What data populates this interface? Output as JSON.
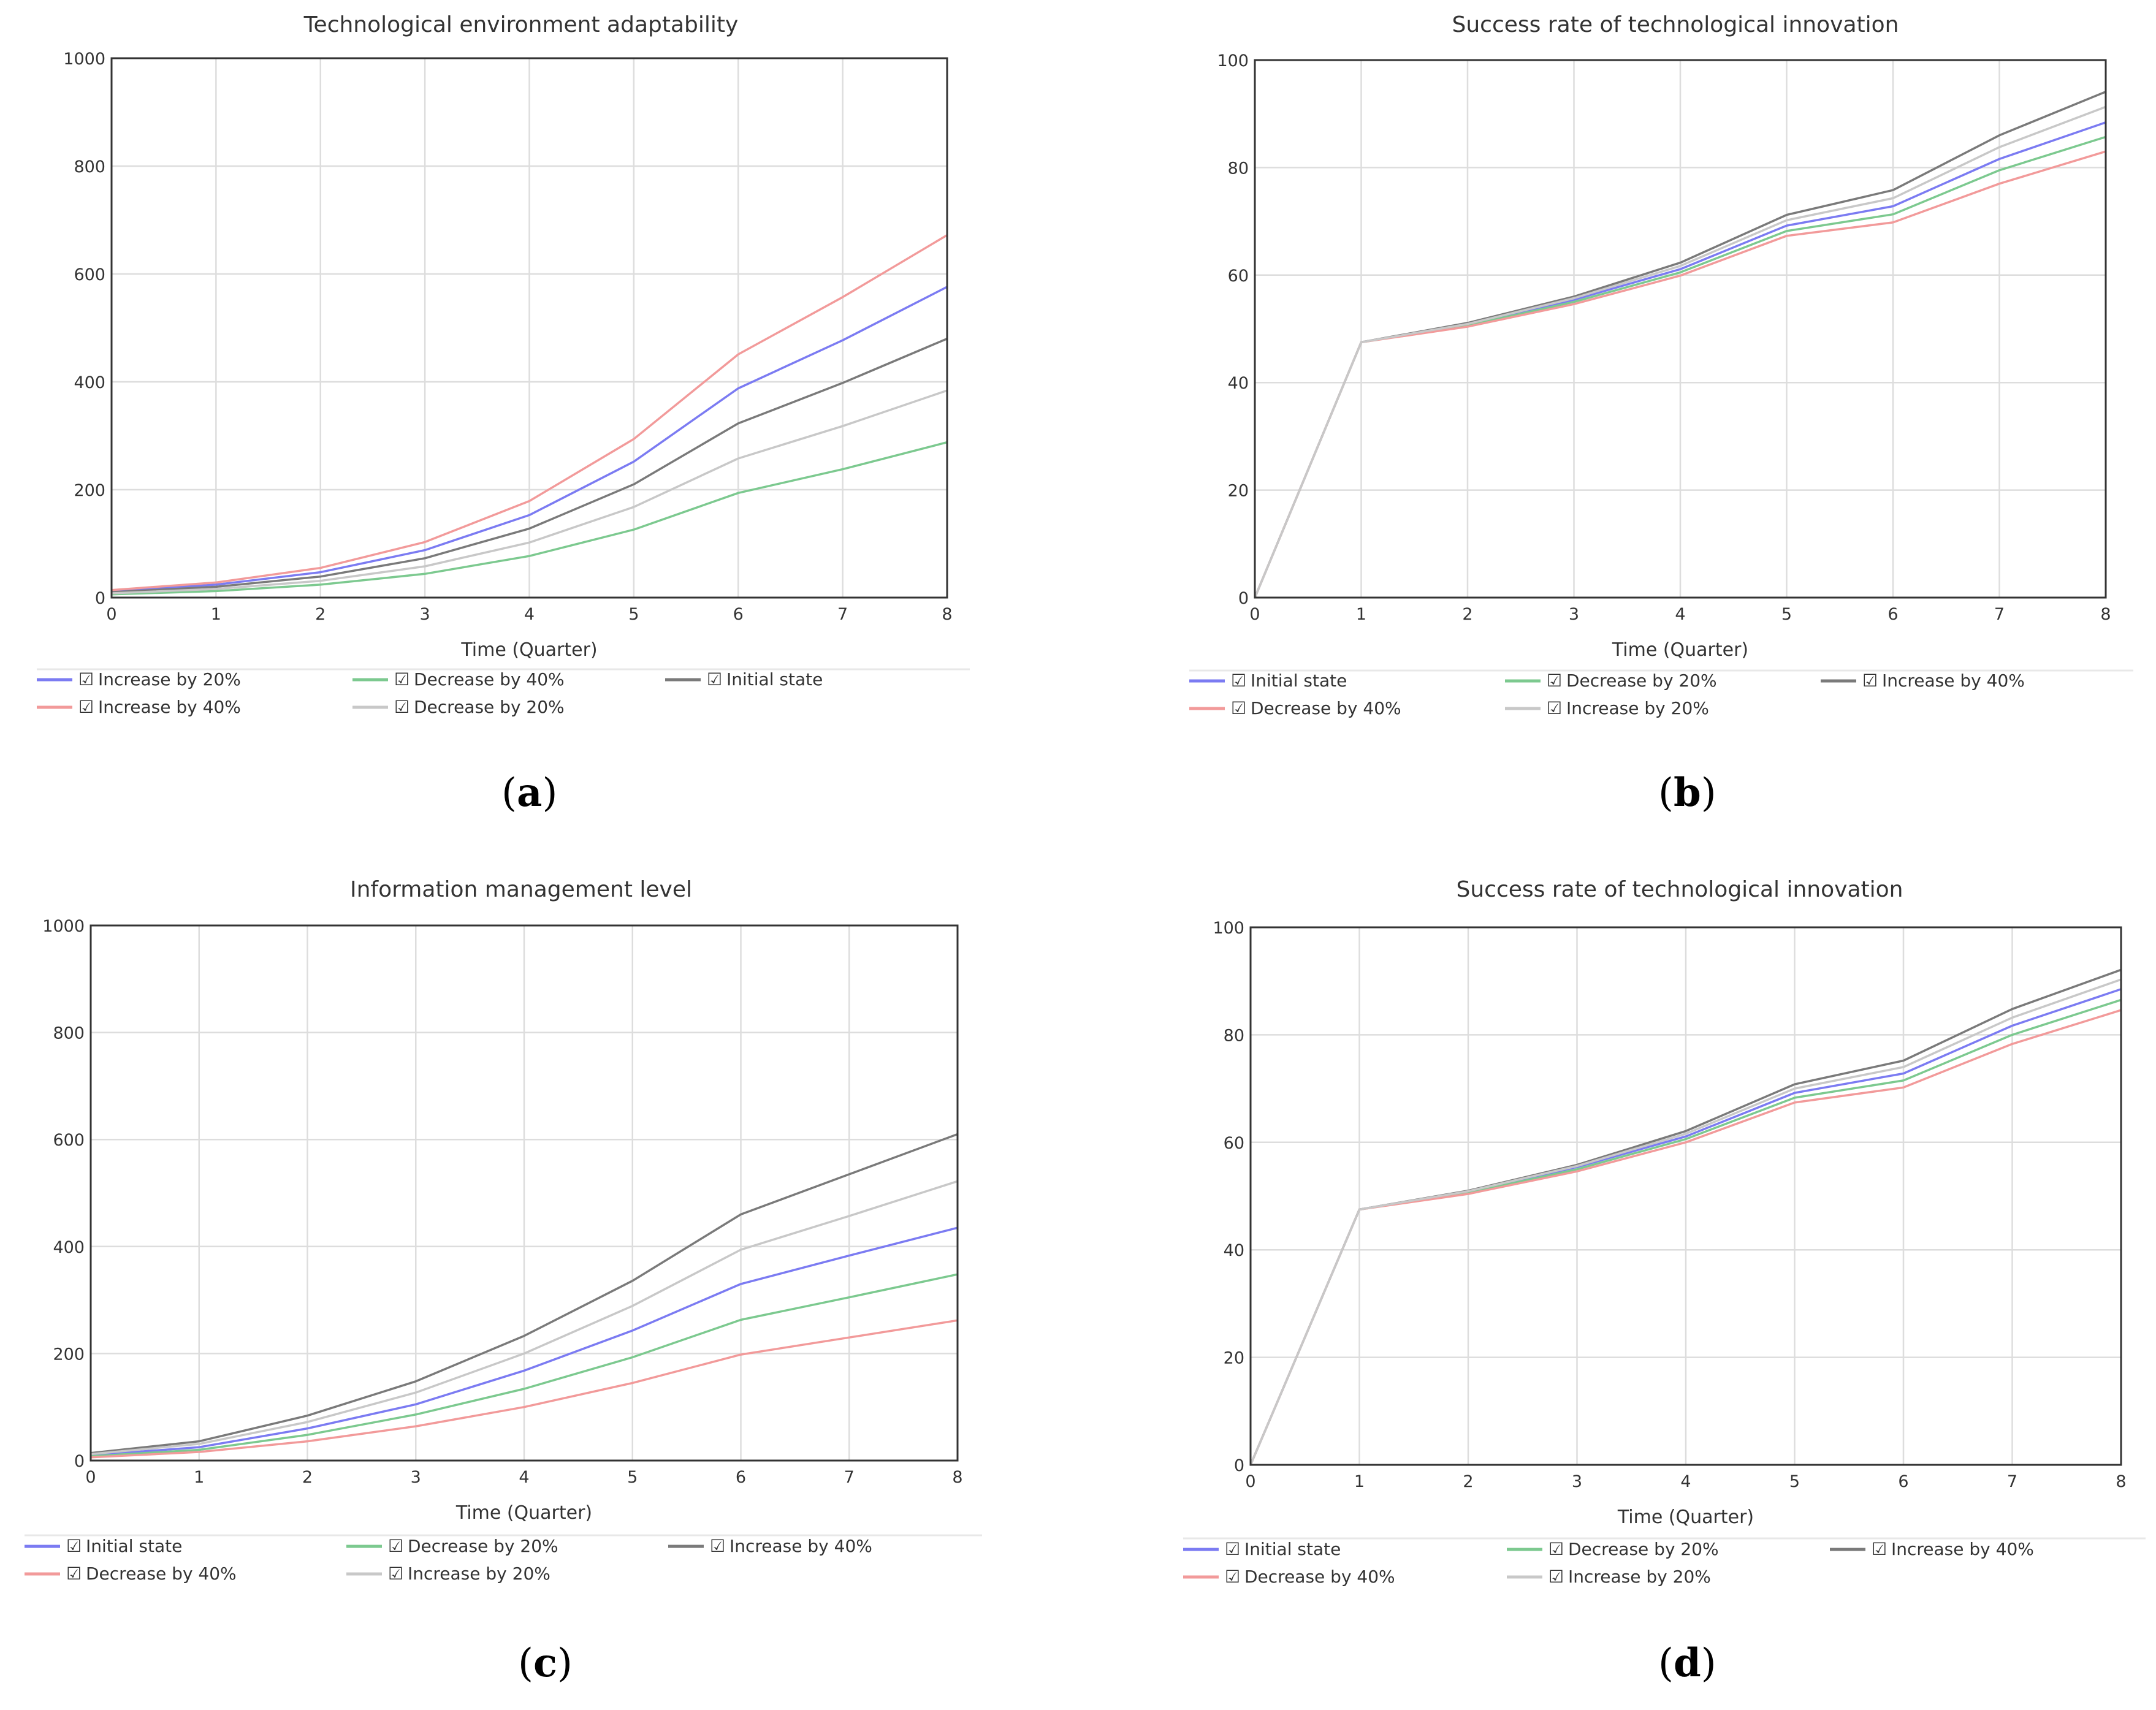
{
  "colors": {
    "blue": "#7b7bf2",
    "green": "#7cc98f",
    "dark": "#7a7a7a",
    "red": "#f29a9a",
    "light": "#c8c8c8",
    "grid": "#dddddd",
    "frame": "#333333"
  },
  "chart_data": [
    {
      "type": "line",
      "panel": "a",
      "title": "Technological environment adaptability",
      "xlabel": "Time (Quarter)",
      "ylabel": "",
      "xlim": [
        0,
        8
      ],
      "ylim": [
        0,
        1000
      ],
      "x_ticks": [
        0,
        1,
        2,
        3,
        4,
        5,
        6,
        7,
        8
      ],
      "y_ticks": [
        0,
        200,
        400,
        600,
        800,
        1000
      ],
      "x": [
        0,
        1,
        2,
        3,
        4,
        5,
        6,
        7,
        8
      ],
      "series": [
        {
          "name": "Increase by 20%",
          "color": "blue",
          "values": [
            12,
            24,
            47,
            88,
            153,
            252,
            388,
            477,
            576
          ]
        },
        {
          "name": "Decrease by 40%",
          "color": "green",
          "values": [
            6,
            12,
            24,
            44,
            77,
            126,
            194,
            238,
            288
          ]
        },
        {
          "name": "Initial state",
          "color": "dark",
          "values": [
            10,
            20,
            39,
            73,
            128,
            210,
            323,
            398,
            480
          ]
        },
        {
          "name": "Increase by 40%",
          "color": "red",
          "values": [
            14,
            28,
            55,
            103,
            179,
            294,
            451,
            557,
            672
          ]
        },
        {
          "name": "Decrease by 20%",
          "color": "light",
          "values": [
            8,
            16,
            31,
            58,
            102,
            168,
            258,
            318,
            384
          ]
        }
      ]
    },
    {
      "type": "line",
      "panel": "b",
      "title": "Success rate of technological innovation",
      "xlabel": "Time (Quarter)",
      "ylabel": "",
      "xlim": [
        0,
        8
      ],
      "ylim": [
        0,
        100
      ],
      "x_ticks": [
        0,
        1,
        2,
        3,
        4,
        5,
        6,
        7,
        8
      ],
      "y_ticks": [
        0,
        20,
        40,
        60,
        80,
        100
      ],
      "x": [
        0,
        1,
        2,
        3,
        4,
        5,
        6,
        7,
        8
      ],
      "series": [
        {
          "name": "Initial state",
          "color": "blue",
          "values": [
            0,
            47.5,
            50.8,
            55.4,
            61.1,
            69.2,
            72.8,
            81.6,
            88.4
          ]
        },
        {
          "name": "Decrease by 20%",
          "color": "green",
          "values": [
            0,
            47.5,
            50.6,
            55.0,
            60.5,
            68.2,
            71.3,
            79.5,
            85.7
          ]
        },
        {
          "name": "Increase by 40%",
          "color": "dark",
          "values": [
            0,
            47.5,
            51.1,
            56.0,
            62.3,
            71.2,
            75.8,
            86.0,
            94.1
          ]
        },
        {
          "name": "Decrease by 40%",
          "color": "red",
          "values": [
            0,
            47.5,
            50.4,
            54.6,
            59.9,
            67.3,
            69.8,
            77.0,
            83.0
          ]
        },
        {
          "name": "Increase by 20%",
          "color": "light",
          "values": [
            0,
            47.5,
            50.9,
            55.7,
            61.7,
            70.2,
            74.3,
            83.8,
            91.3
          ]
        }
      ]
    },
    {
      "type": "line",
      "panel": "c",
      "title": "Information management level",
      "xlabel": "Time (Quarter)",
      "ylabel": "",
      "xlim": [
        0,
        8
      ],
      "ylim": [
        0,
        1000
      ],
      "x_ticks": [
        0,
        1,
        2,
        3,
        4,
        5,
        6,
        7,
        8
      ],
      "y_ticks": [
        0,
        200,
        400,
        600,
        800,
        1000
      ],
      "x": [
        0,
        1,
        2,
        3,
        4,
        5,
        6,
        7,
        8
      ],
      "series": [
        {
          "name": "Initial state",
          "color": "blue",
          "values": [
            10,
            25,
            60,
            105,
            168,
            243,
            330,
            383,
            435
          ]
        },
        {
          "name": "Decrease by 20%",
          "color": "green",
          "values": [
            8,
            20,
            48,
            86,
            134,
            193,
            263,
            305,
            348
          ]
        },
        {
          "name": "Increase by 40%",
          "color": "dark",
          "values": [
            14,
            36,
            84,
            148,
            233,
            336,
            460,
            535,
            610
          ]
        },
        {
          "name": "Decrease by 40%",
          "color": "red",
          "values": [
            6,
            16,
            36,
            64,
            100,
            145,
            198,
            230,
            262
          ]
        },
        {
          "name": "Increase by 20%",
          "color": "light",
          "values": [
            12,
            31,
            72,
            127,
            200,
            289,
            394,
            457,
            522
          ]
        }
      ]
    },
    {
      "type": "line",
      "panel": "d",
      "title": "Success rate of technological innovation",
      "xlabel": "Time (Quarter)",
      "ylabel": "",
      "xlim": [
        0,
        8
      ],
      "ylim": [
        0,
        100
      ],
      "x_ticks": [
        0,
        1,
        2,
        3,
        4,
        5,
        6,
        7,
        8
      ],
      "y_ticks": [
        0,
        20,
        40,
        60,
        80,
        100
      ],
      "x": [
        0,
        1,
        2,
        3,
        4,
        5,
        6,
        7,
        8
      ],
      "series": [
        {
          "name": "Initial state",
          "color": "blue",
          "values": [
            0,
            47.5,
            50.8,
            55.4,
            61.1,
            69.2,
            72.8,
            81.7,
            88.5
          ]
        },
        {
          "name": "Decrease by 20%",
          "color": "green",
          "values": [
            0,
            47.5,
            50.6,
            55.0,
            60.6,
            68.3,
            71.5,
            80.0,
            86.5
          ]
        },
        {
          "name": "Increase by 40%",
          "color": "dark",
          "values": [
            0,
            47.5,
            51.0,
            55.8,
            62.1,
            70.8,
            75.2,
            84.8,
            92.1
          ]
        },
        {
          "name": "Decrease by 40%",
          "color": "red",
          "values": [
            0,
            47.5,
            50.4,
            54.6,
            60.0,
            67.4,
            70.2,
            78.3,
            84.6
          ]
        },
        {
          "name": "Increase by 20%",
          "color": "light",
          "values": [
            0,
            47.5,
            50.9,
            55.6,
            61.6,
            70.0,
            74.0,
            83.2,
            90.3
          ]
        }
      ]
    }
  ],
  "panel_labels": [
    "a",
    "b",
    "c",
    "d"
  ],
  "legend_check_glyph": "☑"
}
